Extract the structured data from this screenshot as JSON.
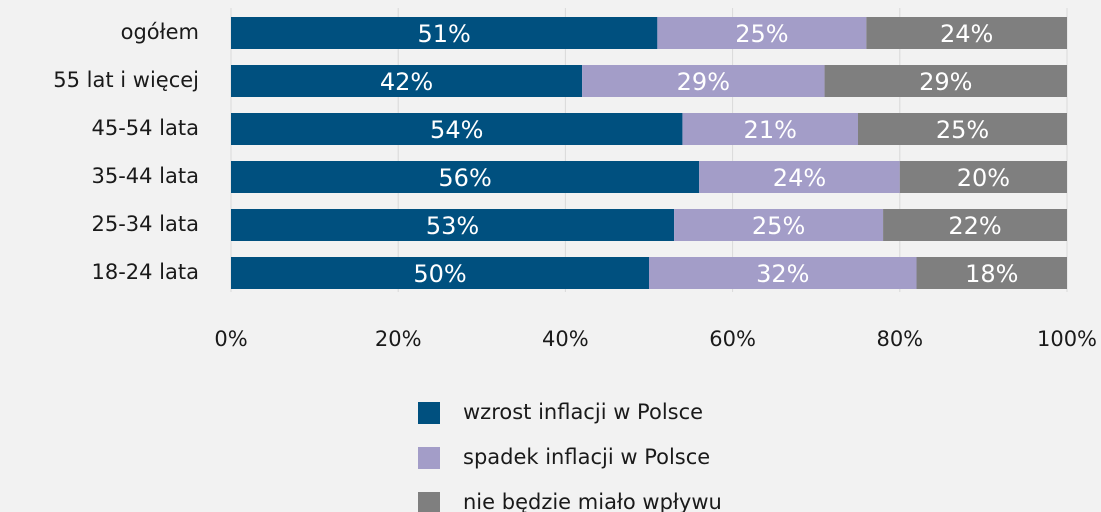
{
  "chart_data": {
    "type": "stacked_barh",
    "categories": [
      "ogółem",
      "55 lat i więcej",
      "45-54 lata",
      "35-44 lata",
      "25-34 lata",
      "18-24 lata"
    ],
    "series": [
      {
        "name": "wzrost inflacji w Polsce",
        "color": "#00507f",
        "values": [
          51,
          42,
          54,
          56,
          53,
          50
        ],
        "value_labels": [
          "51%",
          "42%",
          "54%",
          "56%",
          "53%",
          "50%"
        ]
      },
      {
        "name": "spadek inflacji w Polsce",
        "color": "#a39dc8",
        "values": [
          25,
          29,
          21,
          24,
          25,
          32
        ],
        "value_labels": [
          "25%",
          "29%",
          "21%",
          "24%",
          "25%",
          "32%"
        ]
      },
      {
        "name": "nie będzie miało wpływu",
        "color": "#7f7f7f",
        "values": [
          24,
          29,
          25,
          20,
          22,
          18
        ],
        "value_labels": [
          "24%",
          "29%",
          "25%",
          "20%",
          "22%",
          "18%"
        ]
      }
    ],
    "xlim": [
      0,
      100
    ],
    "xticks": [
      {
        "value": 0,
        "label": "0%"
      },
      {
        "value": 20,
        "label": "20%"
      },
      {
        "value": 40,
        "label": "40%"
      },
      {
        "value": 60,
        "label": "60%"
      },
      {
        "value": 80,
        "label": "80%"
      },
      {
        "value": 100,
        "label": "100%"
      }
    ],
    "grid": true,
    "legend": "bottom"
  }
}
